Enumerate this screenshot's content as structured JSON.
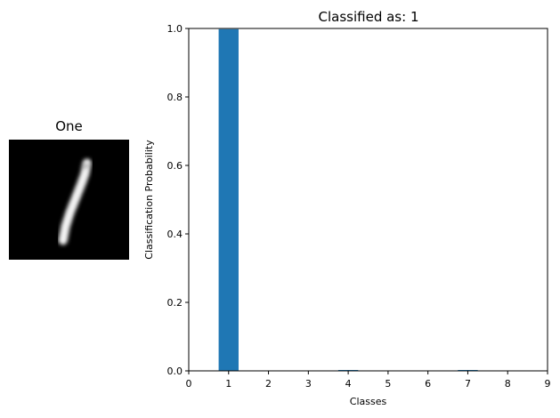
{
  "digit": {
    "title": "One"
  },
  "chart_data": {
    "type": "bar",
    "title": "Classified as: 1",
    "xlabel": "Classes",
    "ylabel": "Classification Probability",
    "categories": [
      "0",
      "1",
      "2",
      "3",
      "4",
      "5",
      "6",
      "7",
      "8",
      "9"
    ],
    "x": [
      0,
      1,
      2,
      3,
      4,
      5,
      6,
      7,
      8,
      9
    ],
    "values": [
      0.0,
      0.998,
      0.0,
      0.0,
      0.0008,
      0.0,
      0.0,
      0.0012,
      0.0,
      0.0
    ],
    "xlim": [
      0,
      9
    ],
    "ylim": [
      0,
      1
    ],
    "xticks": [
      "0",
      "1",
      "2",
      "3",
      "4",
      "5",
      "6",
      "7",
      "8",
      "9"
    ],
    "yticks": [
      "0.0",
      "0.2",
      "0.4",
      "0.6",
      "0.8",
      "1.0"
    ],
    "grid": false,
    "legend": "none",
    "bar_color": "#1f77b4"
  }
}
